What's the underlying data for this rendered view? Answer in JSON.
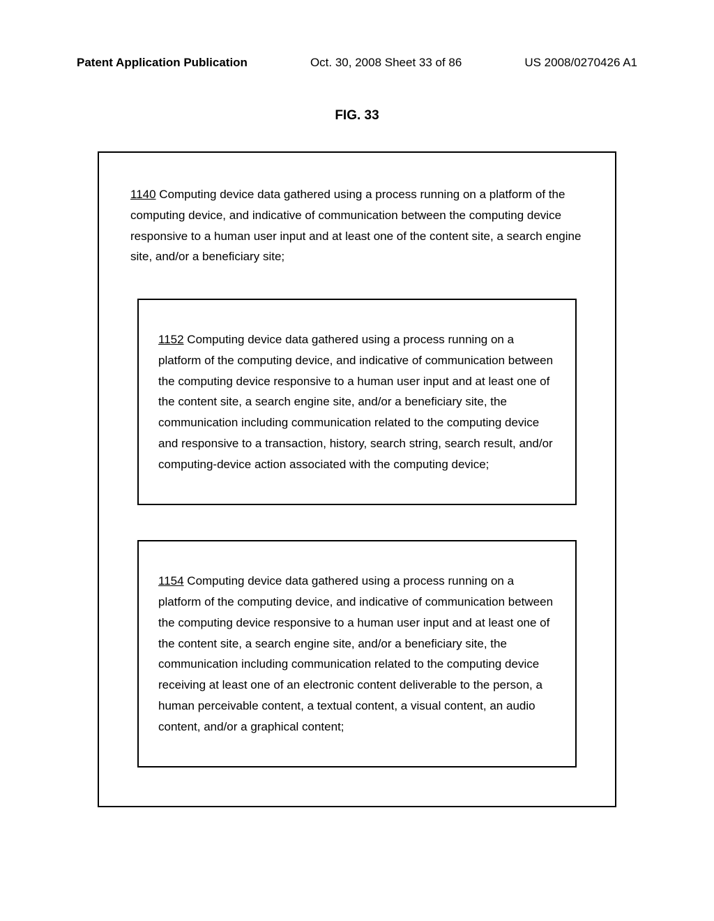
{
  "header": {
    "left": "Patent Application Publication",
    "center": "Oct. 30, 2008  Sheet 33 of 86",
    "right": "US 2008/0270426 A1"
  },
  "figure_label": "FIG. 33",
  "outer_box": {
    "ref": "1140",
    "text": "  Computing device data gathered using a process running on a platform of the computing device, and indicative of communication between the computing device responsive to a human user input and at least one of the content site, a search engine site, and/or a beneficiary site;"
  },
  "inner_box_1": {
    "ref": "1152",
    "text": "  Computing device data gathered using a process running on a platform of the computing device, and indicative of communication between the computing device responsive to a human user input and at least one of the content site, a search engine site, and/or a beneficiary site, the communication including communication related to the computing device and responsive to a transaction, history, search string, search result, and/or computing-device action associated with the computing device;"
  },
  "inner_box_2": {
    "ref": "1154",
    "text": "  Computing device data gathered using a process running on a platform of the computing device, and indicative of communication between the computing device responsive to a human user input and at least one of the content site, a search engine site, and/or a beneficiary site, the communication including communication related to the computing device receiving at least one of an electronic content deliverable to the person, a human perceivable content, a textual content, a visual content, an audio content, and/or a graphical content;"
  }
}
